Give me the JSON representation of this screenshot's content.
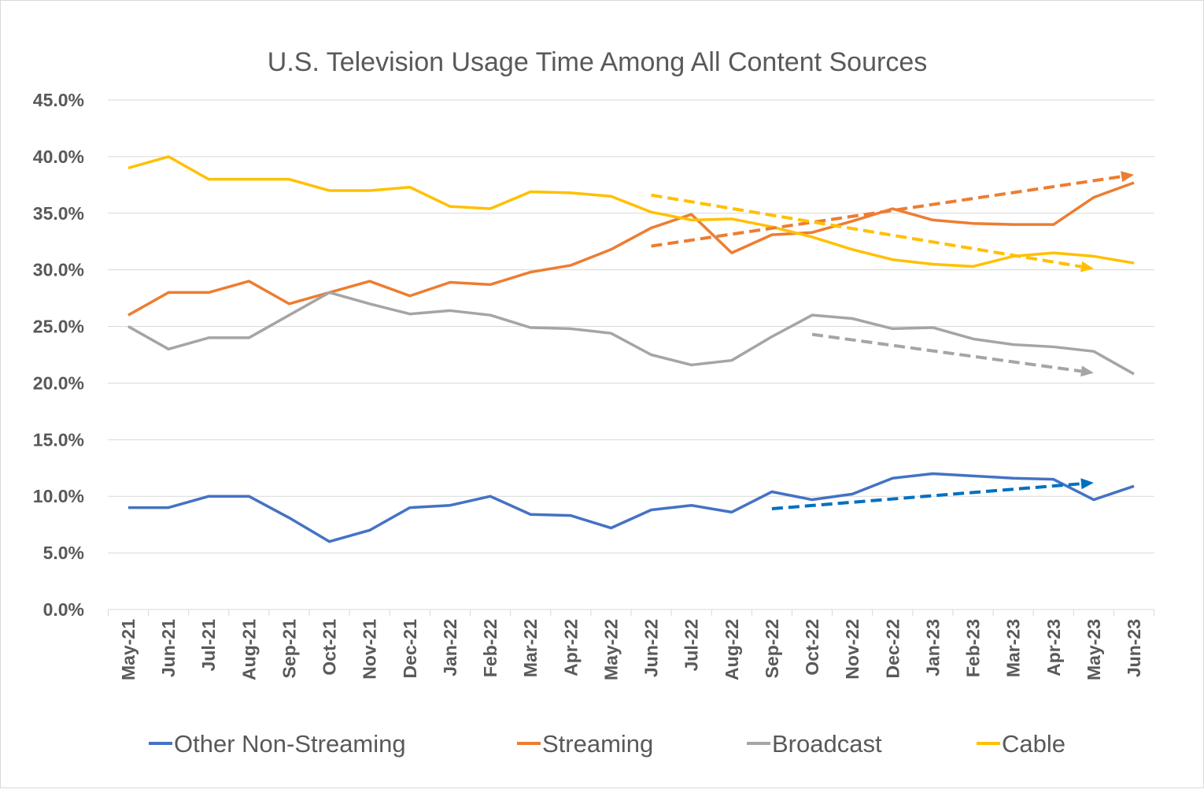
{
  "chart_data": {
    "type": "line",
    "title": "U.S. Television Usage Time Among All Content Sources",
    "xlabel": "",
    "ylabel": "",
    "ylim": [
      0,
      45
    ],
    "yticks": [
      "0.0%",
      "5.0%",
      "10.0%",
      "15.0%",
      "20.0%",
      "25.0%",
      "30.0%",
      "35.0%",
      "40.0%",
      "45.0%"
    ],
    "grid": true,
    "legend": "bottom",
    "categories": [
      "May-21",
      "Jun-21",
      "Jul-21",
      "Aug-21",
      "Sep-21",
      "Oct-21",
      "Nov-21",
      "Dec-21",
      "Jan-22",
      "Feb-22",
      "Mar-22",
      "Apr-22",
      "May-22",
      "Jun-22",
      "Jul-22",
      "Aug-22",
      "Sep-22",
      "Oct-22",
      "Nov-22",
      "Dec-22",
      "Jan-23",
      "Feb-23",
      "Mar-23",
      "Apr-23",
      "May-23",
      "Jun-23"
    ],
    "series": [
      {
        "name": "Other Non-Streaming",
        "color": "#4472c4",
        "values": [
          9,
          9,
          10,
          10,
          8.1,
          6,
          7,
          9,
          9.2,
          10,
          8.4,
          8.3,
          7.2,
          8.8,
          9.2,
          8.6,
          10.4,
          9.7,
          10.2,
          11.6,
          12,
          11.8,
          11.6,
          11.5,
          9.7,
          10.9
        ]
      },
      {
        "name": "Streaming",
        "color": "#ed7d31",
        "values": [
          26,
          28,
          28,
          29,
          27,
          28,
          29,
          27.7,
          28.9,
          28.7,
          29.8,
          30.4,
          31.8,
          33.7,
          34.9,
          31.5,
          33.1,
          33.3,
          34.3,
          35.4,
          34.4,
          34.1,
          34,
          34,
          36.4,
          37.7
        ]
      },
      {
        "name": "Broadcast",
        "color": "#a5a5a5",
        "values": [
          25,
          23,
          24,
          24,
          26,
          28,
          27,
          26.1,
          26.4,
          26,
          24.9,
          24.8,
          24.4,
          22.5,
          21.6,
          22,
          24.1,
          26,
          25.7,
          24.8,
          24.9,
          23.9,
          23.4,
          23.2,
          22.8,
          20.8
        ]
      },
      {
        "name": "Cable",
        "color": "#ffc000",
        "values": [
          39,
          40,
          38,
          38,
          38,
          37,
          37,
          37.3,
          35.6,
          35.4,
          36.9,
          36.8,
          36.5,
          35.1,
          34.4,
          34.5,
          33.8,
          32.9,
          31.8,
          30.9,
          30.5,
          30.3,
          31.2,
          31.5,
          31.2,
          30.6
        ]
      }
    ],
    "trend_arrows": [
      {
        "series": "Streaming",
        "color": "#ed7d31",
        "from": [
          "Jun-22",
          32.1
        ],
        "to": [
          "Jun-23",
          38.4
        ]
      },
      {
        "series": "Cable",
        "color": "#ffc000",
        "from": [
          "Jun-22",
          36.6
        ],
        "to": [
          "May-23",
          30.1
        ]
      },
      {
        "series": "Broadcast",
        "color": "#a5a5a5",
        "from": [
          "Oct-22",
          24.3
        ],
        "to": [
          "May-23",
          20.9
        ]
      },
      {
        "series": "Other Non-Streaming",
        "color": "#0070c0",
        "from": [
          "Sep-22",
          8.9
        ],
        "to": [
          "May-23",
          11.2
        ]
      }
    ]
  }
}
